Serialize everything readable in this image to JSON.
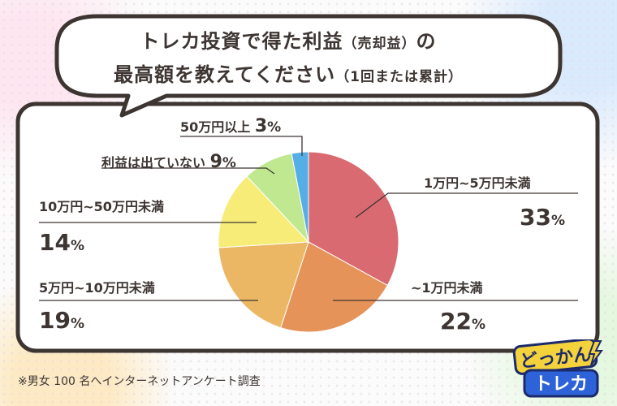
{
  "title": {
    "line1": "トレカ投資で得た利益",
    "line1_paren": "（売却益）",
    "line1_end": "の",
    "line2": "最高額を教えてください",
    "line2_paren": "（1回または累計）"
  },
  "footnote": "※男女 100 名へインターネットアンケート調査",
  "logo": {
    "top": "どっかん",
    "bottom": "トレカ"
  },
  "colors": {
    "outline": "#3d3532",
    "slice_1": "#d96a71",
    "slice_2": "#e6935a",
    "slice_3": "#ecb765",
    "slice_4": "#f7ec78",
    "slice_5": "#bfe890",
    "slice_6": "#55aee6"
  },
  "chart_data": {
    "type": "pie",
    "categories": [
      "1万円~5万円未満",
      "~1万円未満",
      "5万円~10万円未満",
      "10万円~50万円未満",
      "利益は出ていない",
      "50万円以上"
    ],
    "values": [
      33,
      22,
      19,
      14,
      9,
      3
    ],
    "unit": "%"
  }
}
